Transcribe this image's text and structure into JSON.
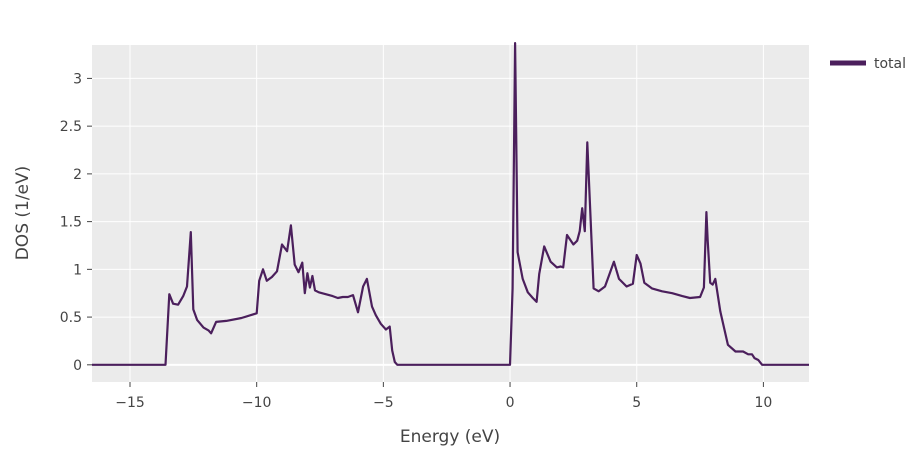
{
  "chart_data": {
    "type": "line",
    "title": "",
    "xlabel": "Energy (eV)",
    "ylabel": "DOS (1/eV)",
    "xlim": [
      -16.5,
      11.8
    ],
    "ylim": [
      -0.18,
      3.35
    ],
    "x_ticks": [
      -15,
      -10,
      -5,
      0,
      5,
      10
    ],
    "x_tick_labels": [
      "−15",
      "−10",
      "−5",
      "0",
      "5",
      "10"
    ],
    "y_ticks": [
      0,
      0.5,
      1,
      1.5,
      2,
      2.5,
      3
    ],
    "y_tick_labels": [
      "0",
      "0.5",
      "1",
      "1.5",
      "2",
      "2.5",
      "3"
    ],
    "grid": true,
    "legend_position": "top-right",
    "series": [
      {
        "name": "total",
        "color": "#4b1f5c",
        "x": [
          -16.5,
          -13.6,
          -13.45,
          -13.3,
          -13.1,
          -12.9,
          -12.75,
          -12.6,
          -12.5,
          -12.35,
          -12.1,
          -11.9,
          -11.8,
          -11.6,
          -11.2,
          -10.6,
          -10.0,
          -9.9,
          -9.75,
          -9.6,
          -9.4,
          -9.2,
          -9.0,
          -8.8,
          -8.65,
          -8.5,
          -8.35,
          -8.2,
          -8.1,
          -8.0,
          -7.9,
          -7.8,
          -7.7,
          -7.55,
          -7.0,
          -6.8,
          -6.6,
          -6.4,
          -6.2,
          -6.0,
          -5.8,
          -5.65,
          -5.45,
          -5.3,
          -5.1,
          -4.9,
          -4.75,
          -4.65,
          -4.55,
          -4.45,
          -4.3,
          0.0,
          0.1,
          0.2,
          0.3,
          0.5,
          0.7,
          0.9,
          1.05,
          1.15,
          1.35,
          1.6,
          1.85,
          2.0,
          2.1,
          2.25,
          2.5,
          2.65,
          2.75,
          2.85,
          2.95,
          3.05,
          3.3,
          3.5,
          3.75,
          3.9,
          4.1,
          4.3,
          4.6,
          4.85,
          5.0,
          5.15,
          5.3,
          5.6,
          6.0,
          6.4,
          6.8,
          7.1,
          7.5,
          7.65,
          7.75,
          7.8,
          7.9,
          8.0,
          8.1,
          8.3,
          8.6,
          8.9,
          9.2,
          9.4,
          9.55,
          9.65,
          9.8,
          9.95,
          10.2,
          11.8
        ],
        "y": [
          0,
          0,
          0.74,
          0.64,
          0.63,
          0.72,
          0.82,
          1.39,
          0.58,
          0.47,
          0.39,
          0.36,
          0.33,
          0.45,
          0.46,
          0.49,
          0.54,
          0.88,
          1.0,
          0.88,
          0.92,
          0.98,
          1.26,
          1.19,
          1.46,
          1.05,
          0.97,
          1.07,
          0.75,
          0.96,
          0.81,
          0.93,
          0.78,
          0.76,
          0.72,
          0.7,
          0.71,
          0.71,
          0.73,
          0.55,
          0.82,
          0.9,
          0.61,
          0.52,
          0.43,
          0.37,
          0.4,
          0.15,
          0.03,
          0,
          0,
          0,
          0.8,
          3.37,
          1.18,
          0.9,
          0.76,
          0.7,
          0.66,
          0.95,
          1.24,
          1.08,
          1.02,
          1.03,
          1.02,
          1.36,
          1.26,
          1.3,
          1.4,
          1.64,
          1.4,
          2.33,
          0.8,
          0.77,
          0.82,
          0.93,
          1.08,
          0.9,
          0.82,
          0.85,
          1.15,
          1.06,
          0.86,
          0.8,
          0.77,
          0.75,
          0.72,
          0.7,
          0.71,
          0.81,
          1.6,
          1.3,
          0.86,
          0.84,
          0.9,
          0.56,
          0.21,
          0.14,
          0.14,
          0.11,
          0.11,
          0.07,
          0.05,
          0,
          0,
          0
        ]
      }
    ]
  }
}
